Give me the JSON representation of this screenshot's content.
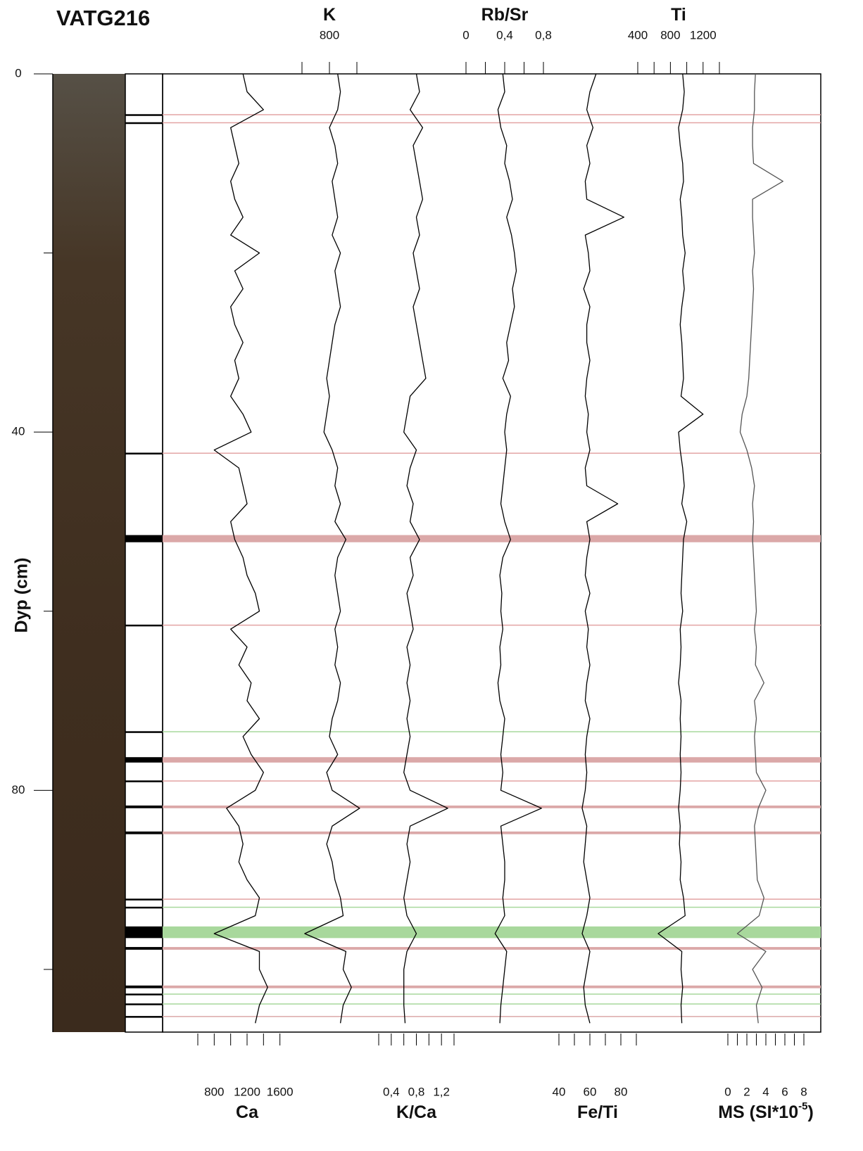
{
  "chart_data": {
    "type": "line",
    "title": "VATG216",
    "ylabel": "Dyp (cm)",
    "ylim": [
      0,
      107
    ],
    "yticks": [
      0,
      40,
      80
    ],
    "minor_yticks": [
      20,
      60,
      100
    ],
    "depth": [
      0,
      2,
      4,
      6,
      8,
      10,
      12,
      14,
      16,
      18,
      20,
      22,
      24,
      26,
      28,
      30,
      32,
      34,
      36,
      38,
      40,
      42,
      44,
      46,
      48,
      50,
      52,
      54,
      56,
      58,
      60,
      62,
      64,
      66,
      68,
      70,
      72,
      74,
      76,
      78,
      80,
      82,
      84,
      86,
      88,
      90,
      92,
      94,
      96,
      98,
      100,
      102,
      104,
      106
    ],
    "series": [
      {
        "name": "Ca",
        "color": "#000000",
        "axis": "bottom",
        "xlim": [
          600,
          1800
        ],
        "xticks": [
          800,
          1200,
          1600
        ],
        "minor_xticks": [
          600,
          1000,
          1400
        ],
        "values": [
          1150,
          1200,
          1400,
          1000,
          1050,
          1100,
          1000,
          1050,
          1150,
          1000,
          1350,
          1050,
          1150,
          1000,
          1050,
          1150,
          1050,
          1100,
          1000,
          1150,
          1250,
          800,
          1100,
          1150,
          1200,
          1000,
          1050,
          1150,
          1200,
          1300,
          1350,
          1000,
          1200,
          1100,
          1250,
          1200,
          1350,
          1150,
          1250,
          1400,
          1300,
          950,
          1100,
          1150,
          1100,
          1200,
          1350,
          1300,
          800,
          1350,
          1350,
          1450,
          1350,
          1300
        ]
      },
      {
        "name": "K",
        "color": "#000000",
        "axis": "top",
        "xlim": [
          600,
          1000
        ],
        "xticks": [
          800
        ],
        "minor_xticks": [
          700,
          900
        ],
        "values": [
          830,
          840,
          830,
          800,
          820,
          830,
          810,
          820,
          830,
          810,
          840,
          820,
          830,
          840,
          820,
          810,
          800,
          790,
          800,
          790,
          780,
          810,
          830,
          820,
          840,
          820,
          860,
          830,
          820,
          830,
          840,
          820,
          830,
          820,
          840,
          830,
          810,
          800,
          830,
          790,
          810,
          910,
          810,
          790,
          810,
          820,
          840,
          850,
          710,
          860,
          850,
          880,
          850,
          840
        ]
      },
      {
        "name": "K/Ca",
        "color": "#000000",
        "axis": "bottom",
        "xlim": [
          0.2,
          1.4
        ],
        "xticks": [
          {
            "value": 0.4,
            "label": "0,4"
          },
          {
            "value": 0.8,
            "label": "0,8"
          },
          {
            "value": 1.2,
            "label": "1,2"
          }
        ],
        "minor_xticks": [
          0.2,
          0.6,
          1.0,
          1.4
        ],
        "values": [
          0.8,
          0.85,
          0.7,
          0.9,
          0.75,
          0.8,
          0.85,
          0.9,
          0.8,
          0.85,
          0.75,
          0.8,
          0.85,
          0.75,
          0.8,
          0.85,
          0.9,
          0.95,
          0.7,
          0.65,
          0.6,
          0.8,
          0.7,
          0.65,
          0.75,
          0.7,
          0.85,
          0.7,
          0.75,
          0.65,
          0.7,
          0.75,
          0.65,
          0.7,
          0.65,
          0.7,
          0.65,
          0.7,
          0.65,
          0.6,
          0.7,
          1.3,
          0.7,
          0.65,
          0.7,
          0.65,
          0.6,
          0.65,
          0.8,
          0.65,
          0.6,
          0.6,
          0.6,
          0.62
        ]
      },
      {
        "name": "Rb/Sr",
        "color": "#000000",
        "axis": "top",
        "xlim": [
          0,
          0.8
        ],
        "xticks": [
          0,
          {
            "value": 0.4,
            "label": "0,4"
          },
          {
            "value": 0.8,
            "label": "0,8"
          }
        ],
        "minor_xticks": [
          0.2,
          0.6
        ],
        "values": [
          0.38,
          0.4,
          0.33,
          0.36,
          0.42,
          0.4,
          0.45,
          0.48,
          0.42,
          0.47,
          0.5,
          0.52,
          0.48,
          0.5,
          0.46,
          0.42,
          0.44,
          0.38,
          0.46,
          0.42,
          0.4,
          0.42,
          0.4,
          0.38,
          0.36,
          0.4,
          0.46,
          0.38,
          0.35,
          0.37,
          0.36,
          0.38,
          0.35,
          0.36,
          0.33,
          0.35,
          0.4,
          0.38,
          0.36,
          0.38,
          0.36,
          0.78,
          0.36,
          0.38,
          0.4,
          0.4,
          0.38,
          0.4,
          0.3,
          0.42,
          0.4,
          0.38,
          0.36,
          0.35
        ]
      },
      {
        "name": "Fe/Ti",
        "color": "#000000",
        "axis": "bottom",
        "xlim": [
          40,
          90
        ],
        "xticks": [
          40,
          60,
          80
        ],
        "minor_xticks": [
          50,
          70,
          90
        ],
        "values": [
          64,
          60,
          58,
          62,
          58,
          60,
          57,
          58,
          82,
          57,
          59,
          60,
          56,
          60,
          58,
          58,
          60,
          58,
          57,
          59,
          58,
          60,
          57,
          58,
          78,
          58,
          60,
          58,
          57,
          60,
          57,
          59,
          58,
          60,
          58,
          57,
          60,
          58,
          57,
          58,
          57,
          55,
          58,
          57,
          56,
          58,
          60,
          58,
          55,
          60,
          58,
          56,
          57,
          60
        ]
      },
      {
        "name": "Ti",
        "color": "#000000",
        "axis": "top",
        "xlim": [
          400,
          1400
        ],
        "xticks": [
          400,
          800,
          1200
        ],
        "minor_xticks": [
          600,
          1000,
          1400
        ],
        "values": [
          950,
          970,
          950,
          900,
          920,
          950,
          960,
          920,
          940,
          950,
          980,
          950,
          970,
          940,
          920,
          940,
          950,
          960,
          930,
          1200,
          900,
          920,
          950,
          970,
          940,
          1000,
          960,
          950,
          940,
          930,
          950,
          920,
          930,
          920,
          900,
          930,
          920,
          930,
          920,
          930,
          920,
          900,
          920,
          910,
          930,
          920,
          960,
          980,
          650,
          940,
          930,
          950,
          930,
          940
        ]
      },
      {
        "name": "MS (SI*10",
        "name_sup": "-5",
        "name_end": ")",
        "color": "#555555",
        "axis": "bottom",
        "xlim": [
          0,
          8
        ],
        "xticks": [
          0,
          2,
          4,
          6,
          8
        ],
        "minor_xticks": [
          1,
          3,
          5,
          7
        ],
        "values": [
          2.9,
          2.8,
          2.8,
          2.6,
          2.6,
          2.7,
          5.8,
          2.6,
          2.6,
          2.7,
          2.8,
          2.6,
          2.7,
          2.6,
          2.5,
          2.4,
          2.3,
          2.2,
          2.0,
          1.5,
          1.3,
          2.0,
          2.5,
          2.8,
          2.6,
          2.7,
          2.6,
          2.7,
          2.8,
          2.9,
          3.0,
          2.8,
          3.0,
          2.9,
          3.8,
          2.8,
          3.0,
          2.8,
          2.9,
          3.0,
          4.0,
          3.2,
          2.8,
          2.9,
          3.0,
          3.1,
          3.8,
          3.3,
          1.0,
          4.0,
          2.6,
          3.6,
          3.0,
          3.2
        ]
      }
    ],
    "events": [
      {
        "top": 4.5,
        "bottom": 4.6,
        "color": "#e3a4a4"
      },
      {
        "top": 5.4,
        "bottom": 5.5,
        "color": "#e3a4a4"
      },
      {
        "top": 42.3,
        "bottom": 42.4,
        "color": "#e3a4a4"
      },
      {
        "top": 51.5,
        "bottom": 52.3,
        "color": "#dba8a8"
      },
      {
        "top": 61.5,
        "bottom": 61.6,
        "color": "#e3a4a4"
      },
      {
        "top": 73.4,
        "bottom": 73.5,
        "color": "#a8d89c"
      },
      {
        "top": 76.3,
        "bottom": 76.9,
        "color": "#dba8a8"
      },
      {
        "top": 78.9,
        "bottom": 79.0,
        "color": "#e3a4a4"
      },
      {
        "top": 81.7,
        "bottom": 82.0,
        "color": "#dba8a8"
      },
      {
        "top": 84.6,
        "bottom": 84.9,
        "color": "#dba8a8"
      },
      {
        "top": 92.1,
        "bottom": 92.2,
        "color": "#e3a4a4"
      },
      {
        "top": 93.0,
        "bottom": 93.1,
        "color": "#a8d89c"
      },
      {
        "top": 95.2,
        "bottom": 96.5,
        "color": "#a8d89c"
      },
      {
        "top": 97.5,
        "bottom": 97.8,
        "color": "#dba8a8"
      },
      {
        "top": 101.8,
        "bottom": 102.1,
        "color": "#dba8a8"
      },
      {
        "top": 102.7,
        "bottom": 102.8,
        "color": "#a8d89c"
      },
      {
        "top": 103.8,
        "bottom": 103.9,
        "color": "#a8d89c"
      },
      {
        "top": 105.2,
        "bottom": 105.3,
        "color": "#dba8a8"
      }
    ]
  }
}
